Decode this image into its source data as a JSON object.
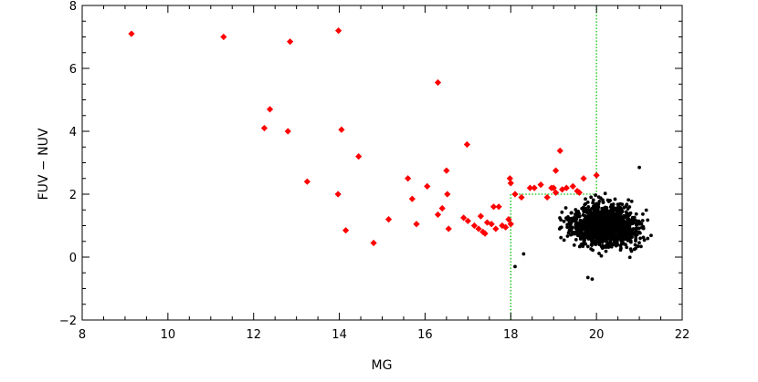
{
  "chart_data": {
    "type": "scatter",
    "title": "",
    "xlabel": "MG",
    "ylabel": "FUV − NUV",
    "xlim": [
      8,
      22
    ],
    "ylim": [
      -2,
      8
    ],
    "xticks": [
      8,
      10,
      12,
      14,
      16,
      18,
      20,
      22
    ],
    "yticks": [
      -2,
      0,
      2,
      4,
      6,
      8
    ],
    "xtick_labels": [
      "8",
      "10",
      "12",
      "14",
      "16",
      "18",
      "20",
      "22"
    ],
    "ytick_labels": [
      "−2",
      "0",
      "2",
      "4",
      "6",
      "8"
    ],
    "grid": false,
    "legend": "none",
    "series": [
      {
        "marker": "diamond",
        "color": "#ff0000",
        "points": [
          [
            9.15,
            7.1
          ],
          [
            11.3,
            7.0
          ],
          [
            12.85,
            6.85
          ],
          [
            13.98,
            7.2
          ],
          [
            16.3,
            5.55
          ],
          [
            12.38,
            4.7
          ],
          [
            12.25,
            4.1
          ],
          [
            12.8,
            4.0
          ],
          [
            14.05,
            4.05
          ],
          [
            14.45,
            3.2
          ],
          [
            13.25,
            2.4
          ],
          [
            13.97,
            2.0
          ],
          [
            14.15,
            0.85
          ],
          [
            14.8,
            0.45
          ],
          [
            15.15,
            1.2
          ],
          [
            15.6,
            2.5
          ],
          [
            15.7,
            1.85
          ],
          [
            15.8,
            1.05
          ],
          [
            16.05,
            2.25
          ],
          [
            16.3,
            1.35
          ],
          [
            16.4,
            1.55
          ],
          [
            16.5,
            2.75
          ],
          [
            16.52,
            2.0
          ],
          [
            16.55,
            0.9
          ],
          [
            16.9,
            1.25
          ],
          [
            17.0,
            1.15
          ],
          [
            16.98,
            3.58
          ],
          [
            17.15,
            1.0
          ],
          [
            17.25,
            0.9
          ],
          [
            17.3,
            1.3
          ],
          [
            17.35,
            0.8
          ],
          [
            17.4,
            0.75
          ],
          [
            17.45,
            1.1
          ],
          [
            17.55,
            1.05
          ],
          [
            17.6,
            1.6
          ],
          [
            17.65,
            0.9
          ],
          [
            17.72,
            1.6
          ],
          [
            17.8,
            1.0
          ],
          [
            17.88,
            0.95
          ],
          [
            17.95,
            1.2
          ],
          [
            18.0,
            1.05
          ],
          [
            17.98,
            2.5
          ],
          [
            18.0,
            2.35
          ],
          [
            18.1,
            2.0
          ],
          [
            18.25,
            1.9
          ],
          [
            18.45,
            2.2
          ],
          [
            18.55,
            2.2
          ],
          [
            18.7,
            2.3
          ],
          [
            18.85,
            1.9
          ],
          [
            18.95,
            2.2
          ],
          [
            19.05,
            2.05
          ],
          [
            19.2,
            2.15
          ],
          [
            19.3,
            2.2
          ],
          [
            19.45,
            2.25
          ],
          [
            19.55,
            2.1
          ],
          [
            19.7,
            2.5
          ],
          [
            19.05,
            2.75
          ],
          [
            19.15,
            3.38
          ],
          [
            20.0,
            2.6
          ],
          [
            19.6,
            2.05
          ],
          [
            19.0,
            2.2
          ]
        ]
      },
      {
        "marker": "dot",
        "color": "#000000",
        "count": 1300,
        "x_range": [
          18.0,
          21.3
        ],
        "center": [
          20.2,
          1.0
        ],
        "y_range": [
          -0.7,
          2.85
        ],
        "outliers": [
          [
            21.0,
            2.85
          ],
          [
            19.8,
            -0.65
          ],
          [
            19.9,
            -0.7
          ],
          [
            18.1,
            -0.3
          ],
          [
            18.3,
            0.1
          ]
        ]
      }
    ],
    "lines": [
      {
        "color": "#00c000",
        "style": "dotted",
        "points": [
          [
            18.0,
            -2.0
          ],
          [
            18.0,
            2.0
          ],
          [
            20.0,
            2.0
          ],
          [
            20.0,
            8.0
          ]
        ]
      }
    ]
  }
}
